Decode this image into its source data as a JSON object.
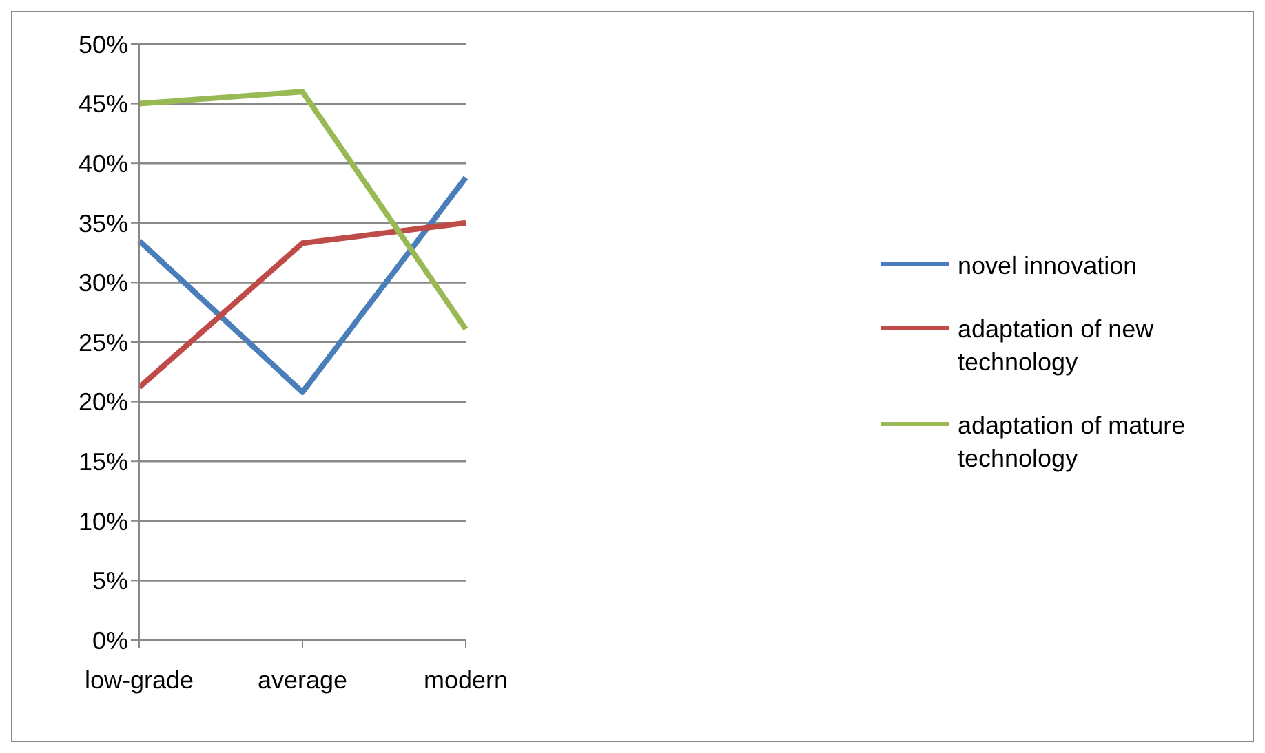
{
  "chart_data": {
    "type": "line",
    "categories": [
      "low-grade",
      "average",
      "modern"
    ],
    "series": [
      {
        "name": "novel innovation",
        "color": "#4a7ebb",
        "values": [
          33.5,
          20.8,
          38.8
        ]
      },
      {
        "name": "adaptation of new technology",
        "color": "#be4b48",
        "values": [
          21.2,
          33.3,
          35.0
        ]
      },
      {
        "name": "adaptation of mature technology",
        "color": "#98b954",
        "values": [
          45.0,
          46.0,
          26.1
        ]
      }
    ],
    "ylim": [
      0,
      50
    ],
    "yticks": [
      {
        "value": 0,
        "label": "0%"
      },
      {
        "value": 5,
        "label": "5%"
      },
      {
        "value": 10,
        "label": "10%"
      },
      {
        "value": 15,
        "label": "15%"
      },
      {
        "value": 20,
        "label": "20%"
      },
      {
        "value": 25,
        "label": "25%"
      },
      {
        "value": 30,
        "label": "30%"
      },
      {
        "value": 35,
        "label": "35%"
      },
      {
        "value": 40,
        "label": "40%"
      },
      {
        "value": 45,
        "label": "45%"
      },
      {
        "value": 50,
        "label": "50%"
      }
    ],
    "grid": "y",
    "legend": "right",
    "marker": "none",
    "line_style": "solid"
  }
}
